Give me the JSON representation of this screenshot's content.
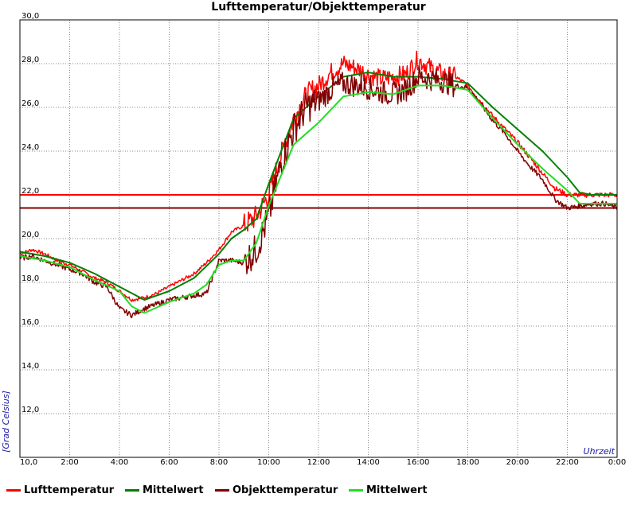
{
  "chart_data": {
    "type": "line",
    "title": "Lufttemperatur/Objekttemperatur",
    "ylabel": "[Grad Celsius]",
    "xlabel": "Uhrzeit",
    "ylim": [
      10,
      30
    ],
    "xlim": [
      0,
      24
    ],
    "yticks": [
      "10,0",
      "12,0",
      "14,0",
      "16,0",
      "18,0",
      "20,0",
      "22,0",
      "24,0",
      "26,0",
      "28,0",
      "30,0"
    ],
    "xticks": [
      "10,0",
      "2:00",
      "4:00",
      "6:00",
      "8:00",
      "10:00",
      "12:00",
      "14:00",
      "16:00",
      "18:00",
      "20:00",
      "22:00",
      "0:00"
    ],
    "grid": true,
    "legend_position": "bottom",
    "hlines": [
      {
        "y": 22.0,
        "color": "#ff0000"
      },
      {
        "y": 21.4,
        "color": "#800000"
      }
    ],
    "series": [
      {
        "name": "Lufttemperatur",
        "color": "#ff0000",
        "x": [
          0,
          0.5,
          1,
          1.5,
          2,
          2.5,
          3,
          3.5,
          4,
          4.5,
          5,
          5.5,
          6,
          6.5,
          7,
          7.5,
          8,
          8.5,
          9,
          9.5,
          10,
          10.5,
          11,
          11.5,
          12,
          12.5,
          13,
          13.5,
          14,
          14.5,
          15,
          15.5,
          16,
          16.5,
          17,
          17.5,
          18,
          18.5,
          19,
          19.5,
          20,
          20.5,
          21,
          21.5,
          22,
          22.5,
          23,
          23.5,
          24
        ],
        "y": [
          19.3,
          19.5,
          19.3,
          19.0,
          18.8,
          18.5,
          18.2,
          18.0,
          17.6,
          17.2,
          17.3,
          17.5,
          17.8,
          18.1,
          18.4,
          18.9,
          19.5,
          20.3,
          20.6,
          21.0,
          22.0,
          23.8,
          25.5,
          26.5,
          27.0,
          27.6,
          28.0,
          27.8,
          27.5,
          27.3,
          27.4,
          27.5,
          28.2,
          27.8,
          27.5,
          27.4,
          27.0,
          26.3,
          25.6,
          25.0,
          24.4,
          23.7,
          23.0,
          22.3,
          22.0,
          22.0,
          22.0,
          22.0,
          22.0
        ]
      },
      {
        "name": "Mittelwert",
        "color": "#008000",
        "x": [
          0,
          1,
          2,
          3,
          4,
          5,
          6,
          7,
          8,
          8.5,
          9,
          9.5,
          10,
          11,
          12,
          13,
          14,
          15,
          16,
          17,
          18,
          19,
          20,
          21,
          22,
          22.5,
          23,
          24
        ],
        "y": [
          19.4,
          19.2,
          18.9,
          18.4,
          17.8,
          17.2,
          17.6,
          18.2,
          19.3,
          20.0,
          20.4,
          20.9,
          22.5,
          25.5,
          26.5,
          27.4,
          27.6,
          27.4,
          27.4,
          27.3,
          27.1,
          26.0,
          25.0,
          24.0,
          22.8,
          22.1,
          22.0,
          22.0
        ]
      },
      {
        "name": "Objekttemperatur",
        "color": "#800000",
        "x": [
          0,
          0.5,
          1,
          1.5,
          2,
          2.5,
          3,
          3.5,
          4,
          4.5,
          5,
          5.5,
          6,
          6.5,
          7,
          7.5,
          8,
          8.5,
          9,
          9.5,
          10,
          10.5,
          11,
          11.5,
          12,
          12.5,
          13,
          13.5,
          14,
          14.5,
          15,
          15.5,
          16,
          16.5,
          17,
          17.5,
          18,
          18.5,
          19,
          19.5,
          20,
          20.5,
          21,
          21.5,
          22,
          22.5,
          23,
          23.5,
          24
        ],
        "y": [
          19.1,
          19.2,
          19.0,
          18.8,
          18.6,
          18.4,
          18.0,
          17.8,
          16.8,
          16.5,
          16.8,
          17.0,
          17.2,
          17.3,
          17.4,
          17.5,
          19.0,
          19.0,
          18.9,
          19.5,
          21.0,
          23.5,
          25.0,
          26.0,
          26.3,
          26.8,
          27.1,
          27.0,
          26.9,
          26.7,
          26.6,
          26.8,
          27.4,
          27.3,
          27.2,
          27.0,
          26.9,
          26.2,
          25.4,
          24.8,
          24.0,
          23.3,
          22.7,
          21.8,
          21.4,
          21.5,
          21.6,
          21.6,
          21.4
        ]
      },
      {
        "name": "Mittelwert",
        "color": "#22dd22",
        "x": [
          0,
          1,
          2,
          3,
          4,
          4.5,
          5,
          6,
          7,
          7.5,
          8,
          8.5,
          9,
          9.5,
          10,
          11,
          12,
          13,
          14,
          15,
          16,
          17,
          18,
          19,
          20,
          21,
          22,
          22.5,
          23,
          24
        ],
        "y": [
          19.2,
          19.0,
          18.7,
          18.1,
          17.6,
          16.9,
          16.6,
          17.1,
          17.5,
          17.9,
          18.8,
          19.0,
          19.0,
          19.8,
          21.5,
          24.3,
          25.3,
          26.5,
          26.7,
          26.6,
          27.0,
          27.0,
          26.8,
          25.5,
          24.3,
          23.2,
          22.2,
          21.6,
          21.6,
          21.6
        ]
      }
    ]
  },
  "legend": [
    {
      "label": "Lufttemperatur",
      "color": "#ff0000"
    },
    {
      "label": "Mittelwert",
      "color": "#008000"
    },
    {
      "label": "Objekttemperatur",
      "color": "#800000"
    },
    {
      "label": "Mittelwert",
      "color": "#22dd22"
    }
  ]
}
